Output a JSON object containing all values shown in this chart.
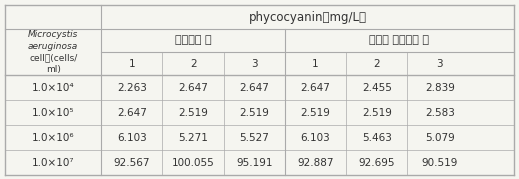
{
  "title": "phycocyanin（mg/L）",
  "col_header_row1_left": "원심분리 후",
  "col_header_row1_right": "초고속 원심분리 후",
  "col_header_row2": [
    "1",
    "2",
    "3",
    "1",
    "2",
    "3"
  ],
  "row_header_label_line1": "Microcystis",
  "row_header_label_line2": "aeruginosa",
  "row_header_label_line3": "cell수(cells/",
  "row_header_label_line4": "ml)",
  "row_labels": [
    "1.0×10⁴",
    "1.0×10⁵",
    "1.0×10⁶",
    "1.0×10⁷"
  ],
  "data": [
    [
      "2.263",
      "2.647",
      "2.647",
      "2.647",
      "2.455",
      "2.839"
    ],
    [
      "2.647",
      "2.519",
      "2.519",
      "2.519",
      "2.519",
      "2.583"
    ],
    [
      "6.103",
      "5.271",
      "5.527",
      "6.103",
      "5.463",
      "5.079"
    ],
    [
      "92.567",
      "100.055",
      "95.191",
      "92.887",
      "92.695",
      "90.519"
    ]
  ],
  "bg_color": "#f5f5f0",
  "line_color": "#aaaaaa",
  "text_color": "#333333",
  "header_bg": "#f5f5f0"
}
